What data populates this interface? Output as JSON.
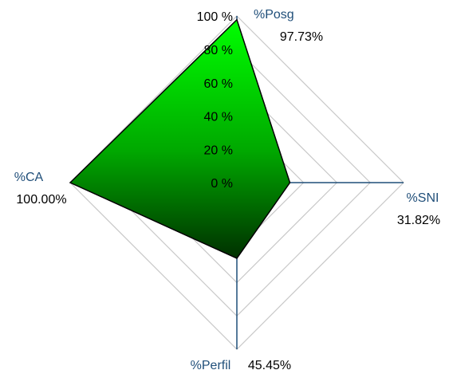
{
  "chart_data": {
    "type": "radar",
    "categories": [
      "%Posg",
      "%SNI",
      "%Perfil",
      "%CA"
    ],
    "values": [
      97.73,
      31.82,
      45.45,
      100
    ],
    "value_labels": [
      "97.73%",
      "31.82%",
      "45.45%",
      "100.00%"
    ],
    "ylim": [
      0,
      100
    ],
    "yticks": [
      {
        "value": 0,
        "label": "0 %"
      },
      {
        "value": 20,
        "label": "20 %"
      },
      {
        "value": 40,
        "label": "40 %"
      },
      {
        "value": 60,
        "label": "60 %"
      },
      {
        "value": 80,
        "label": "80 %"
      },
      {
        "value": 100,
        "label": "100 %"
      }
    ],
    "grid": true,
    "color": "#00c800"
  }
}
